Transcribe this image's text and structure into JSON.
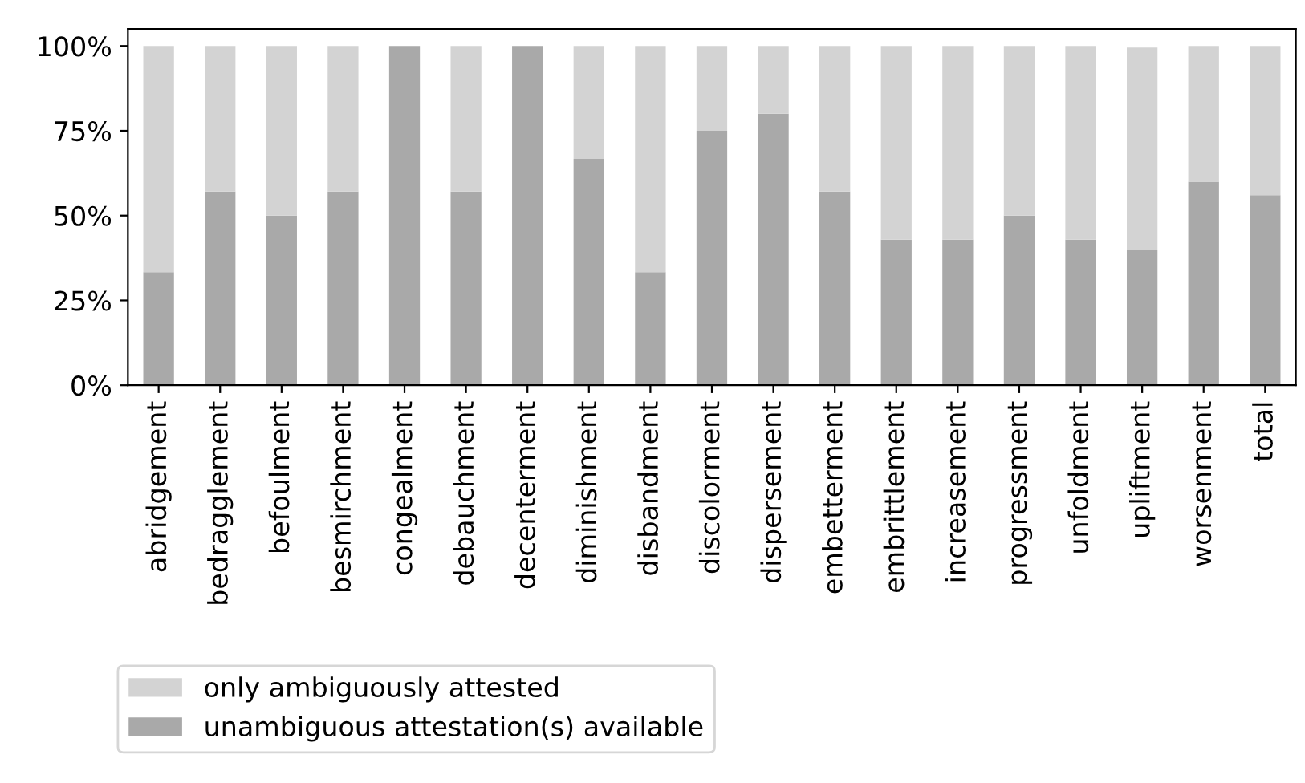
{
  "chart_data": {
    "type": "bar",
    "stacked": true,
    "categories": [
      "abridgement",
      "bedragglement",
      "befoulment",
      "besmirchment",
      "congealment",
      "debauchment",
      "decenterment",
      "diminishment",
      "disbandment",
      "discolorment",
      "dispersement",
      "embetterment",
      "embrittlement",
      "increasement",
      "progressment",
      "unfoldment",
      "upliftment",
      "worsenment",
      "total"
    ],
    "series": [
      {
        "name": "unambiguous attestation(s) available",
        "color": "#a9a9a9",
        "values": [
          33.3,
          57.1,
          50,
          57.1,
          100,
          57.1,
          100,
          66.7,
          33.3,
          75,
          80,
          57.1,
          42.9,
          42.9,
          50,
          42.9,
          40,
          60,
          56
        ]
      },
      {
        "name": "only ambiguously attested",
        "color": "#d3d3d3",
        "values": [
          66.7,
          42.9,
          50,
          42.9,
          0,
          42.9,
          0,
          33.3,
          66.7,
          25,
          20,
          42.9,
          57.1,
          57.1,
          50,
          57.1,
          59.5,
          40,
          44
        ]
      }
    ],
    "ylim": [
      0,
      105
    ],
    "yticks": [
      {
        "value": 0,
        "label": "0%"
      },
      {
        "value": 25,
        "label": "25%"
      },
      {
        "value": 50,
        "label": "50%"
      },
      {
        "value": 75,
        "label": "75%"
      },
      {
        "value": 100,
        "label": "100%"
      }
    ],
    "grid": false,
    "legend": "bottom left"
  }
}
